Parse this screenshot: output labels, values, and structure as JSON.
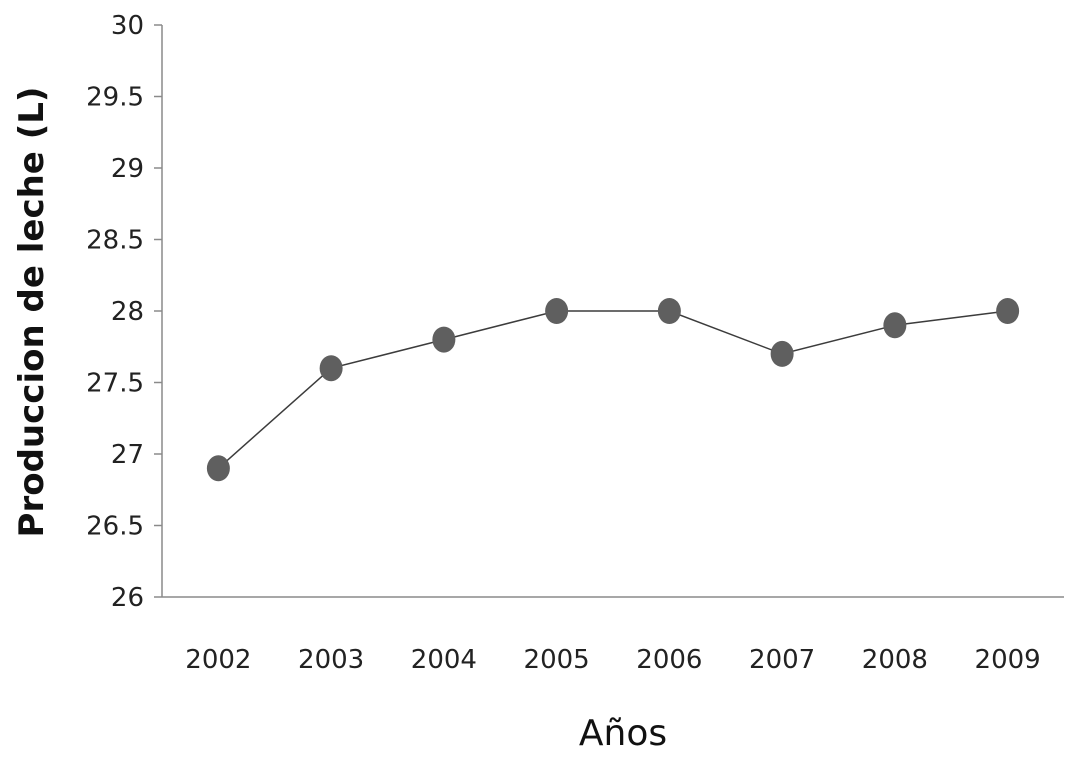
{
  "chart_data": {
    "type": "line",
    "title": "",
    "xlabel": "Años",
    "ylabel": "Produccion de leche (L)",
    "categories": [
      "2002",
      "2003",
      "2004",
      "2005",
      "2006",
      "2007",
      "2008",
      "2009"
    ],
    "series": [
      {
        "values": [
          26.9,
          27.6,
          27.8,
          28.0,
          28.0,
          27.7,
          27.9,
          28.0
        ]
      }
    ],
    "ylim": [
      26,
      30
    ],
    "yticks": [
      "26",
      "26.5",
      "27",
      "27.5",
      "28",
      "28.5",
      "29",
      "29.5",
      "30"
    ],
    "grid": false,
    "legend": "none",
    "colors": {
      "line": "#3c3c3c",
      "marker": "#5f5f5f",
      "axis": "#8a8a8a"
    }
  }
}
